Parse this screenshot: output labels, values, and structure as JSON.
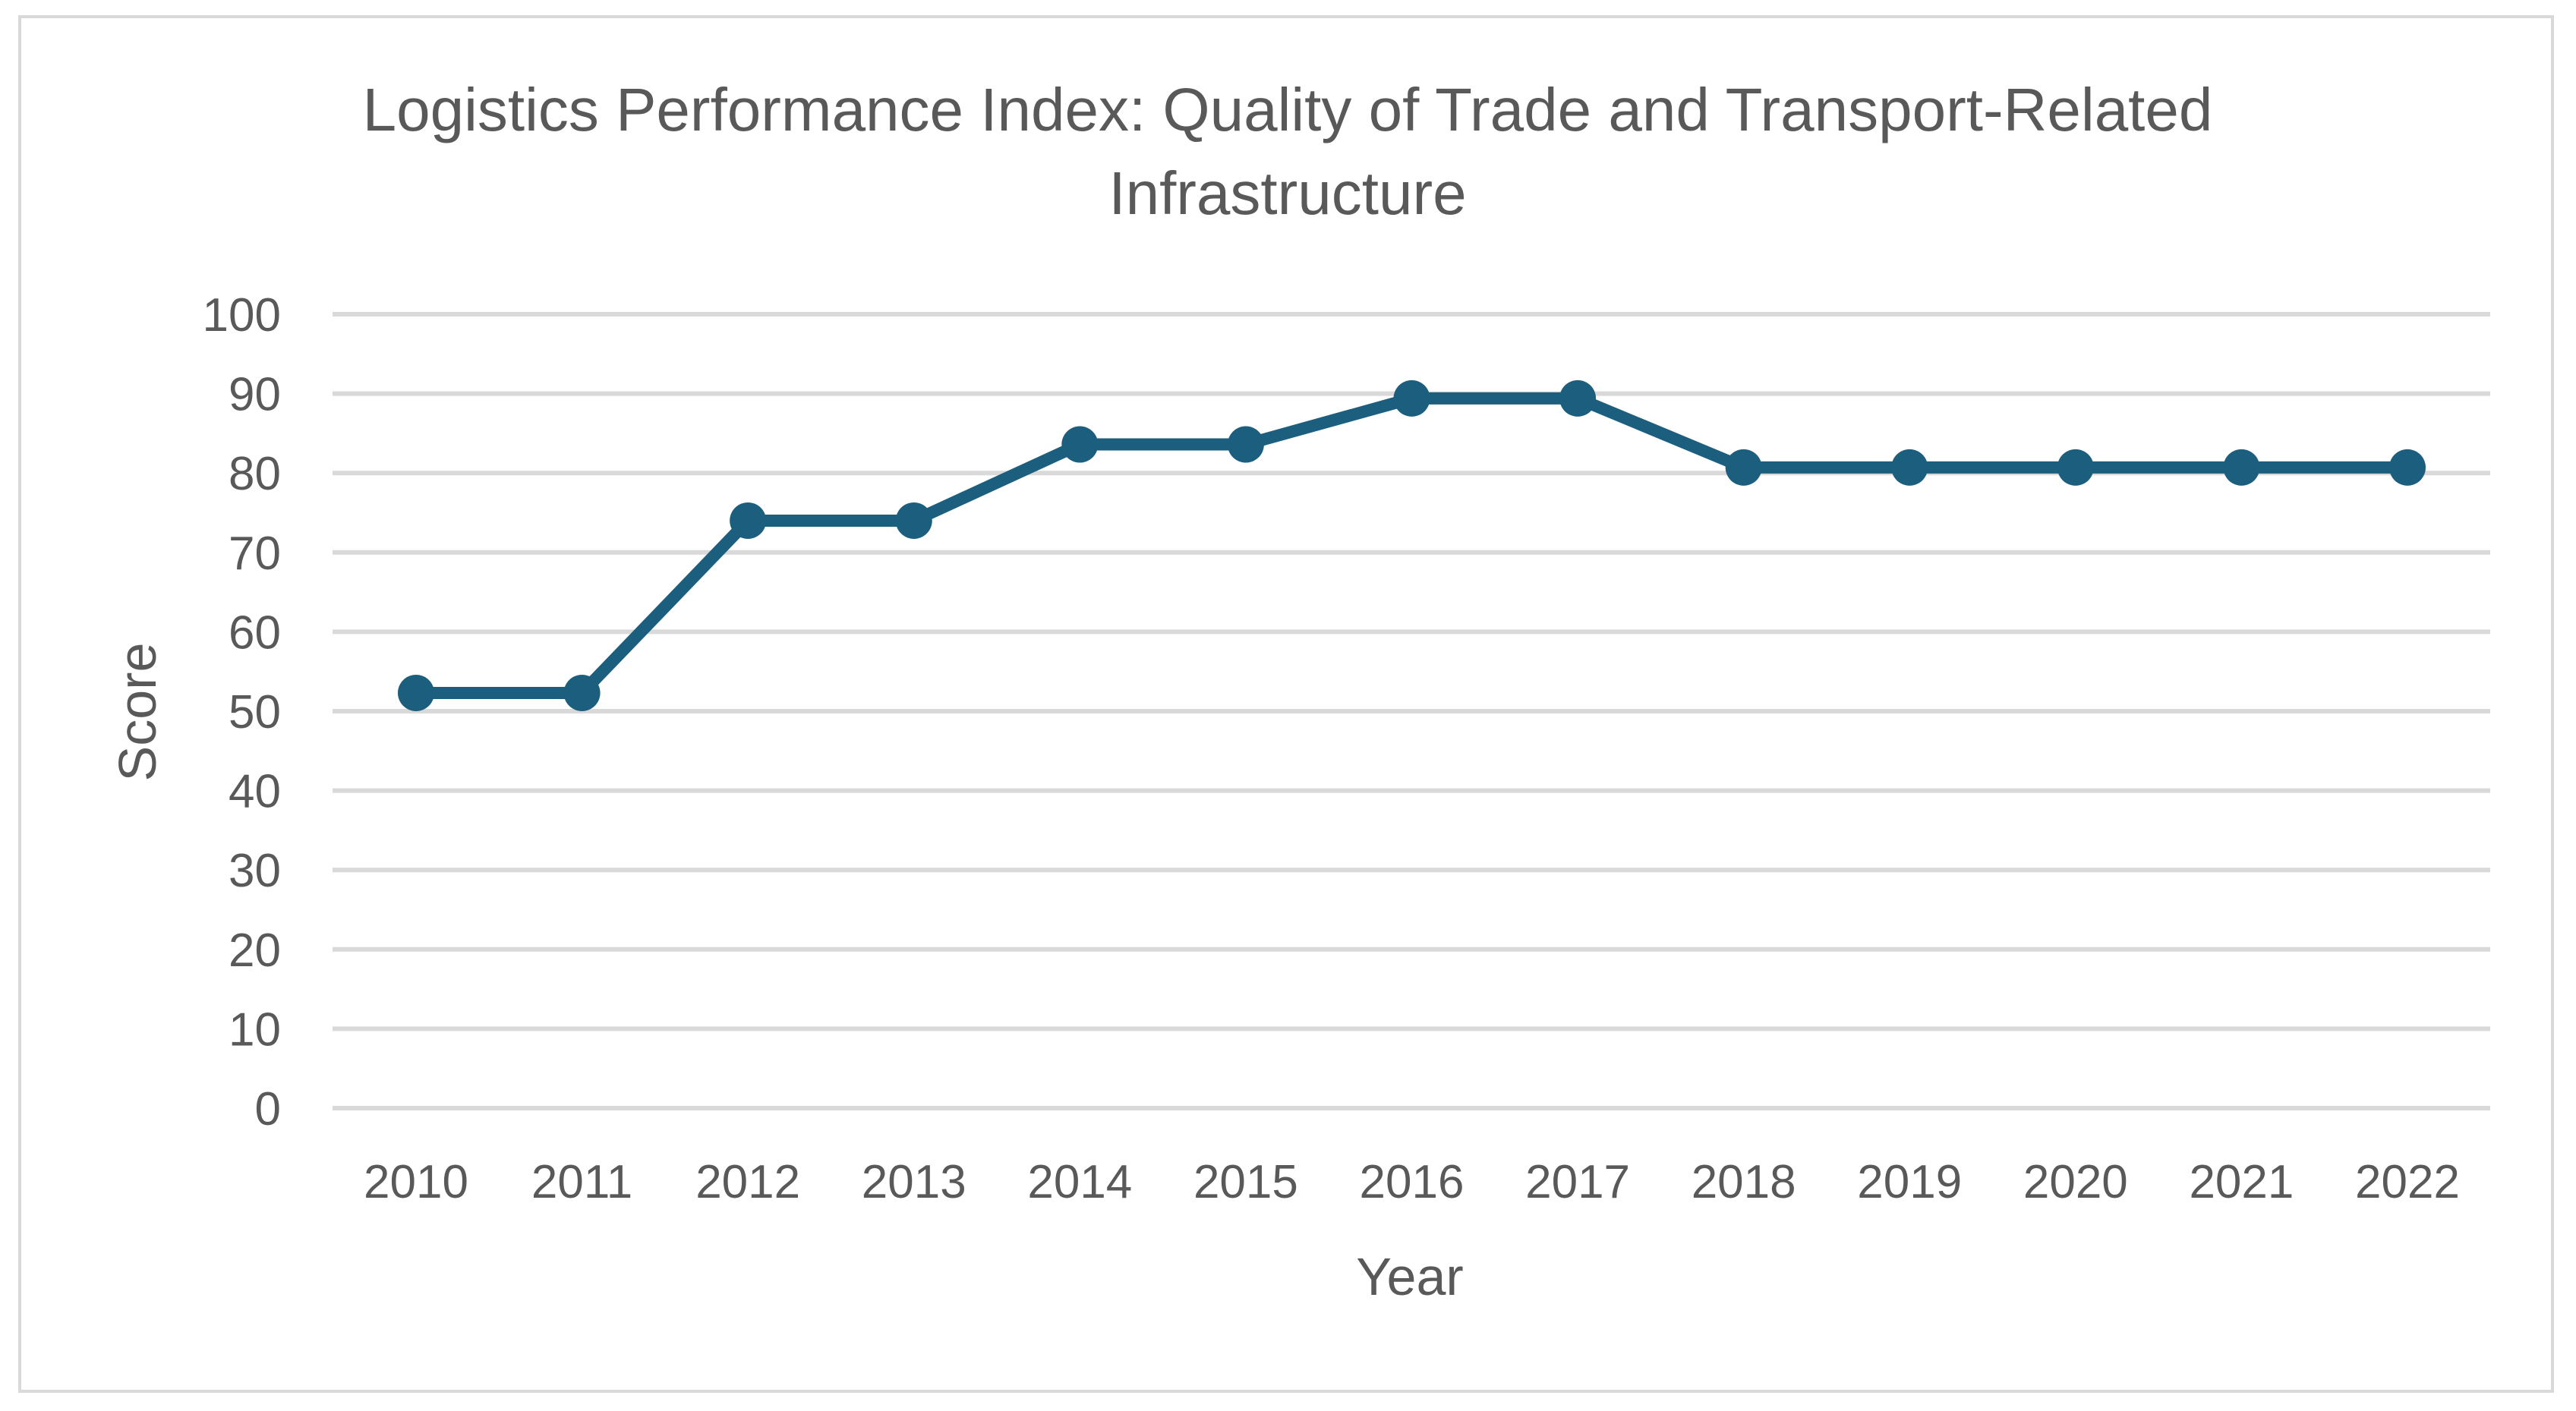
{
  "chart_data": {
    "type": "line",
    "title_lines": [
      "Logistics Performance Index: Quality of Trade and Transport-Related",
      "Infrastructure"
    ],
    "xlabel": "Year",
    "ylabel": "Score",
    "ylim": [
      0,
      100
    ],
    "y_ticks": [
      "0",
      "10",
      "20",
      "30",
      "40",
      "50",
      "60",
      "70",
      "80",
      "90",
      "100"
    ],
    "grid": true,
    "categories": [
      "2010",
      "2011",
      "2012",
      "2013",
      "2014",
      "2015",
      "2016",
      "2017",
      "2018",
      "2019",
      "2020",
      "2021",
      "2022"
    ],
    "series": [
      {
        "name": "Score",
        "color": "#1b5e7d",
        "values": [
          52.3,
          52.3,
          74.0,
          74.0,
          83.6,
          83.6,
          89.4,
          89.4,
          80.7,
          80.7,
          80.7,
          80.7,
          80.7
        ]
      }
    ]
  }
}
